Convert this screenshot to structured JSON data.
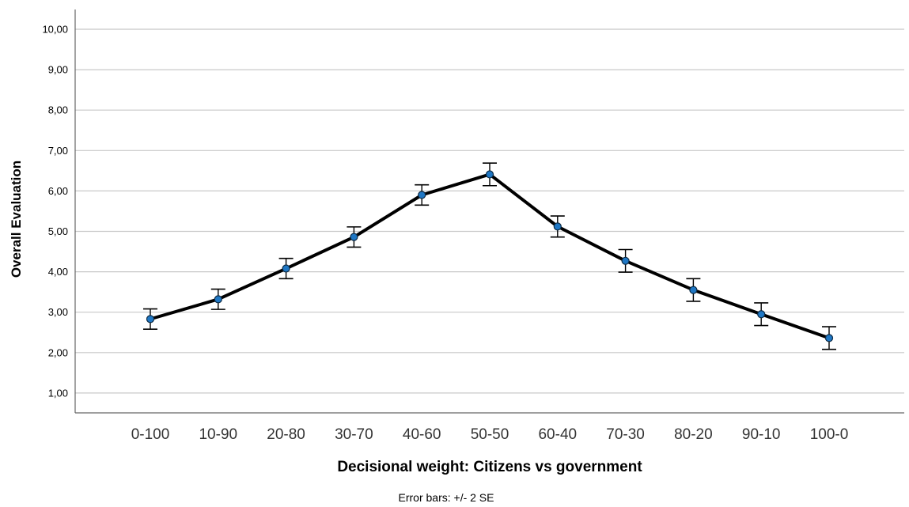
{
  "chart_data": {
    "type": "line",
    "xlabel": "Decisional weight: Citizens vs government",
    "ylabel": "Overall Evaluation",
    "note": "Error bars: +/- 2 SE",
    "categories": [
      "0-100",
      "10-90",
      "20-80",
      "30-70",
      "40-60",
      "50-50",
      "60-40",
      "70-30",
      "80-20",
      "90-10",
      "100-0"
    ],
    "values": [
      2.83,
      3.32,
      4.08,
      4.86,
      5.9,
      6.41,
      5.12,
      4.27,
      3.55,
      2.95,
      2.36
    ],
    "error_low": [
      2.58,
      3.07,
      3.83,
      4.61,
      5.65,
      6.13,
      4.86,
      3.99,
      3.27,
      2.67,
      2.08
    ],
    "error_high": [
      3.08,
      3.57,
      4.33,
      5.11,
      6.15,
      6.69,
      5.38,
      4.55,
      3.83,
      3.23,
      2.64
    ],
    "y_ticks": [
      "1,00",
      "2,00",
      "3,00",
      "4,00",
      "5,00",
      "6,00",
      "7,00",
      "8,00",
      "9,00",
      "10,00"
    ],
    "ylim": [
      0.5,
      10.5
    ],
    "grid": true,
    "colors": {
      "line": "#000000",
      "marker": "#1f77c4",
      "grid": "#c8c8c8",
      "axis": "#666666"
    }
  }
}
